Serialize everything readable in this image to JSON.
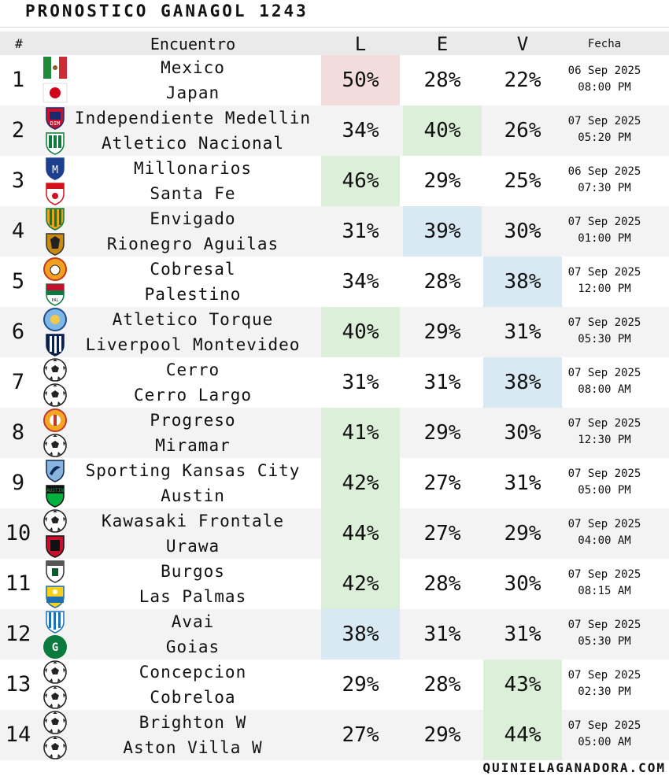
{
  "title": "PRONOSTICO GANAGOL 1243",
  "header": {
    "num": "#",
    "match": "Encuentro",
    "l": "L",
    "e": "E",
    "v": "V",
    "date": "Fecha"
  },
  "colors": {
    "red": "#f2dcdc",
    "green": "#dcefd8",
    "blue": "#d9e9f3"
  },
  "rows": [
    {
      "num": "1",
      "home": "Mexico",
      "away": "Japan",
      "l": "50%",
      "e": "28%",
      "v": "22%",
      "date": "06 Sep 2025",
      "time": "08:00 PM",
      "hl": "l",
      "hlc": "red",
      "home_icon": "mexico-flag-icon",
      "away_icon": "japan-flag-icon"
    },
    {
      "num": "2",
      "home": "Independiente Medellin",
      "away": "Atletico Nacional",
      "l": "34%",
      "e": "40%",
      "v": "26%",
      "date": "07 Sep 2025",
      "time": "05:20 PM",
      "hl": "e",
      "hlc": "green",
      "home_icon": "medellin-crest-icon",
      "away_icon": "nacional-crest-icon"
    },
    {
      "num": "3",
      "home": "Millonarios",
      "away": "Santa Fe",
      "l": "46%",
      "e": "29%",
      "v": "25%",
      "date": "06 Sep 2025",
      "time": "07:30 PM",
      "hl": "l",
      "hlc": "green",
      "home_icon": "millonarios-crest-icon",
      "away_icon": "santa-fe-crest-icon"
    },
    {
      "num": "4",
      "home": "Envigado",
      "away": "Rionegro Aguilas",
      "l": "31%",
      "e": "39%",
      "v": "30%",
      "date": "07 Sep 2025",
      "time": "01:00 PM",
      "hl": "e",
      "hlc": "blue",
      "home_icon": "envigado-crest-icon",
      "away_icon": "rionegro-crest-icon"
    },
    {
      "num": "5",
      "home": "Cobresal",
      "away": "Palestino",
      "l": "34%",
      "e": "28%",
      "v": "38%",
      "date": "07 Sep 2025",
      "time": "12:00 PM",
      "hl": "v",
      "hlc": "blue",
      "home_icon": "cobresal-crest-icon",
      "away_icon": "palestino-crest-icon"
    },
    {
      "num": "6",
      "home": "Atletico Torque",
      "away": "Liverpool Montevideo",
      "l": "40%",
      "e": "29%",
      "v": "31%",
      "date": "07 Sep 2025",
      "time": "05:30 PM",
      "hl": "l",
      "hlc": "green",
      "home_icon": "torque-crest-icon",
      "away_icon": "liverpool-crest-icon"
    },
    {
      "num": "7",
      "home": "Cerro",
      "away": "Cerro Largo",
      "l": "31%",
      "e": "31%",
      "v": "38%",
      "date": "07 Sep 2025",
      "time": "08:00 AM",
      "hl": "v",
      "hlc": "blue",
      "home_icon": "soccer-ball-icon",
      "away_icon": "soccer-ball-icon"
    },
    {
      "num": "8",
      "home": "Progreso",
      "away": "Miramar",
      "l": "41%",
      "e": "29%",
      "v": "30%",
      "date": "07 Sep 2025",
      "time": "12:30 PM",
      "hl": "l",
      "hlc": "green",
      "home_icon": "progreso-crest-icon",
      "away_icon": "soccer-ball-icon"
    },
    {
      "num": "9",
      "home": "Sporting Kansas City",
      "away": "Austin",
      "l": "42%",
      "e": "27%",
      "v": "31%",
      "date": "07 Sep 2025",
      "time": "05:00 PM",
      "hl": "l",
      "hlc": "green",
      "home_icon": "skc-crest-icon",
      "away_icon": "austin-crest-icon"
    },
    {
      "num": "10",
      "home": "Kawasaki Frontale",
      "away": "Urawa",
      "l": "44%",
      "e": "27%",
      "v": "29%",
      "date": "07 Sep 2025",
      "time": "04:00 AM",
      "hl": "l",
      "hlc": "green",
      "home_icon": "soccer-ball-icon",
      "away_icon": "urawa-crest-icon"
    },
    {
      "num": "11",
      "home": "Burgos",
      "away": "Las Palmas",
      "l": "42%",
      "e": "28%",
      "v": "30%",
      "date": "07 Sep 2025",
      "time": "08:15 AM",
      "hl": "l",
      "hlc": "green",
      "home_icon": "burgos-crest-icon",
      "away_icon": "las-palmas-crest-icon"
    },
    {
      "num": "12",
      "home": "Avai",
      "away": "Goias",
      "l": "38%",
      "e": "31%",
      "v": "31%",
      "date": "07 Sep 2025",
      "time": "05:30 PM",
      "hl": "l",
      "hlc": "blue",
      "home_icon": "avai-crest-icon",
      "away_icon": "goias-crest-icon"
    },
    {
      "num": "13",
      "home": "Concepcion",
      "away": "Cobreloa",
      "l": "29%",
      "e": "28%",
      "v": "43%",
      "date": "07 Sep 2025",
      "time": "02:30 PM",
      "hl": "v",
      "hlc": "green",
      "home_icon": "soccer-ball-icon",
      "away_icon": "soccer-ball-icon"
    },
    {
      "num": "14",
      "home": "Brighton W",
      "away": "Aston Villa W",
      "l": "27%",
      "e": "29%",
      "v": "44%",
      "date": "07 Sep 2025",
      "time": "05:00 AM",
      "hl": "v",
      "hlc": "green",
      "home_icon": "soccer-ball-icon",
      "away_icon": "soccer-ball-icon"
    }
  ],
  "footer": "QUINIELAGANADORA.COM"
}
